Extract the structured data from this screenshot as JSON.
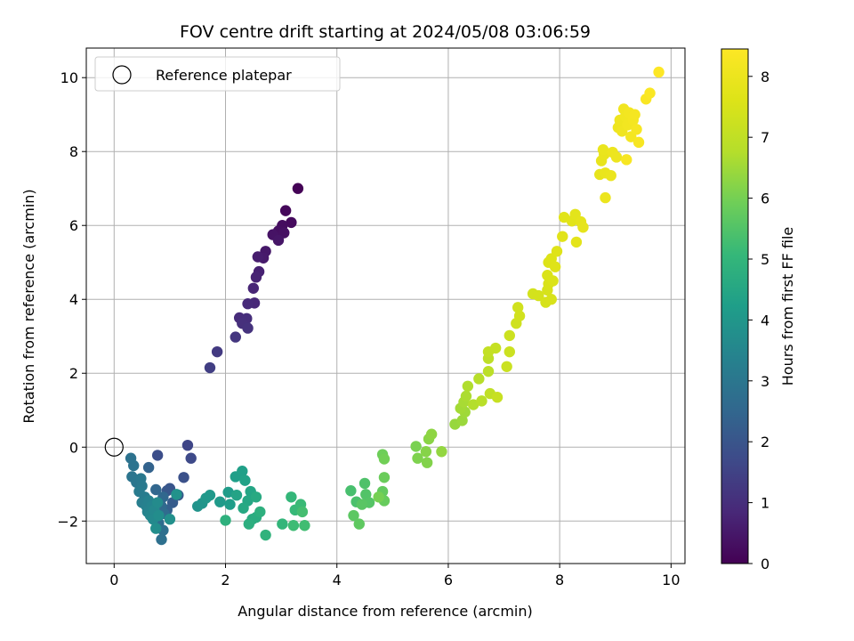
{
  "chart_data": {
    "type": "scatter",
    "title": "FOV centre drift starting at 2024/05/08 03:06:59",
    "xlabel": "Angular distance from reference (arcmin)",
    "ylabel": "Rotation from reference (arcmin)",
    "xlim": [
      -0.5,
      10.25
    ],
    "ylim": [
      -3.15,
      10.8
    ],
    "xticks": [
      0,
      2,
      4,
      6,
      8,
      10
    ],
    "yticks": [
      -2,
      0,
      2,
      4,
      6,
      8,
      10
    ],
    "grid": true,
    "legend": {
      "position": "top-left",
      "label": "Reference platepar"
    },
    "reference_point": {
      "x": 0,
      "y": 0
    },
    "colorbar": {
      "label": "Hours from first FF file",
      "range": [
        0,
        8.45
      ],
      "ticks": [
        0,
        1,
        2,
        3,
        4,
        5,
        6,
        7,
        8
      ],
      "colormap": "viridis"
    },
    "points": [
      {
        "x": 3.3,
        "y": 7.0,
        "h": 0.05
      },
      {
        "x": 3.08,
        "y": 6.4,
        "h": 0.15
      },
      {
        "x": 3.18,
        "y": 6.08,
        "h": 0.2
      },
      {
        "x": 3.02,
        "y": 6.0,
        "h": 0.25
      },
      {
        "x": 2.95,
        "y": 5.85,
        "h": 0.3
      },
      {
        "x": 3.05,
        "y": 5.8,
        "h": 0.35
      },
      {
        "x": 2.85,
        "y": 5.75,
        "h": 0.4
      },
      {
        "x": 2.95,
        "y": 5.6,
        "h": 0.45
      },
      {
        "x": 2.72,
        "y": 5.3,
        "h": 0.5
      },
      {
        "x": 2.68,
        "y": 5.12,
        "h": 0.55
      },
      {
        "x": 2.58,
        "y": 5.15,
        "h": 0.6
      },
      {
        "x": 2.6,
        "y": 4.75,
        "h": 0.7
      },
      {
        "x": 2.55,
        "y": 4.6,
        "h": 0.75
      },
      {
        "x": 2.5,
        "y": 4.3,
        "h": 0.8
      },
      {
        "x": 2.52,
        "y": 3.9,
        "h": 0.85
      },
      {
        "x": 2.4,
        "y": 3.88,
        "h": 0.9
      },
      {
        "x": 2.25,
        "y": 3.5,
        "h": 0.95
      },
      {
        "x": 2.38,
        "y": 3.48,
        "h": 1.0
      },
      {
        "x": 2.3,
        "y": 3.35,
        "h": 1.05
      },
      {
        "x": 2.4,
        "y": 3.22,
        "h": 1.1
      },
      {
        "x": 2.18,
        "y": 2.98,
        "h": 1.2
      },
      {
        "x": 1.85,
        "y": 2.58,
        "h": 1.3
      },
      {
        "x": 1.72,
        "y": 2.15,
        "h": 1.4
      },
      {
        "x": 1.32,
        "y": 0.05,
        "h": 1.6
      },
      {
        "x": 1.38,
        "y": -0.3,
        "h": 1.7
      },
      {
        "x": 0.78,
        "y": -0.22,
        "h": 1.8
      },
      {
        "x": 1.25,
        "y": -0.82,
        "h": 1.9
      },
      {
        "x": 1.0,
        "y": -1.12,
        "h": 2.0
      },
      {
        "x": 0.95,
        "y": -1.18,
        "h": 2.05
      },
      {
        "x": 1.15,
        "y": -1.3,
        "h": 2.1
      },
      {
        "x": 1.05,
        "y": -1.5,
        "h": 2.2
      },
      {
        "x": 0.95,
        "y": -1.7,
        "h": 2.3
      },
      {
        "x": 0.62,
        "y": -0.55,
        "h": 2.4
      },
      {
        "x": 0.75,
        "y": -1.15,
        "h": 2.5
      },
      {
        "x": 0.88,
        "y": -1.35,
        "h": 2.55
      },
      {
        "x": 0.85,
        "y": -1.6,
        "h": 2.6
      },
      {
        "x": 0.9,
        "y": -1.8,
        "h": 2.65
      },
      {
        "x": 0.8,
        "y": -2.05,
        "h": 2.7
      },
      {
        "x": 0.88,
        "y": -2.25,
        "h": 2.75
      },
      {
        "x": 0.85,
        "y": -2.5,
        "h": 2.8
      },
      {
        "x": 0.3,
        "y": -0.3,
        "h": 2.85
      },
      {
        "x": 0.35,
        "y": -0.5,
        "h": 2.9
      },
      {
        "x": 0.32,
        "y": -0.8,
        "h": 2.95
      },
      {
        "x": 0.4,
        "y": -0.95,
        "h": 3.0
      },
      {
        "x": 0.48,
        "y": -0.85,
        "h": 3.05
      },
      {
        "x": 0.5,
        "y": -1.05,
        "h": 3.1
      },
      {
        "x": 0.45,
        "y": -1.2,
        "h": 3.15
      },
      {
        "x": 0.55,
        "y": -1.35,
        "h": 3.2
      },
      {
        "x": 0.5,
        "y": -1.5,
        "h": 3.25
      },
      {
        "x": 0.58,
        "y": -1.6,
        "h": 3.3
      },
      {
        "x": 0.62,
        "y": -1.45,
        "h": 3.35
      },
      {
        "x": 0.6,
        "y": -1.75,
        "h": 3.4
      },
      {
        "x": 0.68,
        "y": -1.6,
        "h": 3.45
      },
      {
        "x": 0.65,
        "y": -1.85,
        "h": 3.5
      },
      {
        "x": 0.72,
        "y": -1.7,
        "h": 3.55
      },
      {
        "x": 0.7,
        "y": -1.95,
        "h": 3.6
      },
      {
        "x": 0.78,
        "y": -1.5,
        "h": 3.65
      },
      {
        "x": 0.8,
        "y": -1.85,
        "h": 3.7
      },
      {
        "x": 0.75,
        "y": -2.2,
        "h": 3.75
      },
      {
        "x": 1.0,
        "y": -1.95,
        "h": 3.8
      },
      {
        "x": 1.12,
        "y": -1.28,
        "h": 3.85
      },
      {
        "x": 1.5,
        "y": -1.6,
        "h": 3.9
      },
      {
        "x": 1.58,
        "y": -1.52,
        "h": 3.95
      },
      {
        "x": 1.65,
        "y": -1.38,
        "h": 4.0
      },
      {
        "x": 1.72,
        "y": -1.3,
        "h": 4.05
      },
      {
        "x": 1.9,
        "y": -1.48,
        "h": 4.1
      },
      {
        "x": 2.05,
        "y": -1.22,
        "h": 4.15
      },
      {
        "x": 2.08,
        "y": -1.55,
        "h": 4.2
      },
      {
        "x": 2.18,
        "y": -0.8,
        "h": 4.25
      },
      {
        "x": 2.3,
        "y": -0.65,
        "h": 4.3
      },
      {
        "x": 2.35,
        "y": -0.9,
        "h": 4.35
      },
      {
        "x": 2.2,
        "y": -1.3,
        "h": 4.4
      },
      {
        "x": 2.45,
        "y": -1.2,
        "h": 4.45
      },
      {
        "x": 2.4,
        "y": -1.45,
        "h": 4.5
      },
      {
        "x": 2.32,
        "y": -1.65,
        "h": 4.55
      },
      {
        "x": 2.55,
        "y": -1.35,
        "h": 4.6
      },
      {
        "x": 2.48,
        "y": -1.95,
        "h": 4.65
      },
      {
        "x": 2.55,
        "y": -1.9,
        "h": 4.7
      },
      {
        "x": 2.42,
        "y": -2.08,
        "h": 4.75
      },
      {
        "x": 2.62,
        "y": -1.75,
        "h": 4.8
      },
      {
        "x": 2.0,
        "y": -1.98,
        "h": 4.85
      },
      {
        "x": 2.72,
        "y": -2.38,
        "h": 4.9
      },
      {
        "x": 3.02,
        "y": -2.08,
        "h": 5.0
      },
      {
        "x": 3.18,
        "y": -1.35,
        "h": 5.05
      },
      {
        "x": 3.25,
        "y": -1.7,
        "h": 5.1
      },
      {
        "x": 3.35,
        "y": -1.55,
        "h": 5.15
      },
      {
        "x": 3.22,
        "y": -2.12,
        "h": 5.2
      },
      {
        "x": 3.42,
        "y": -2.12,
        "h": 5.25
      },
      {
        "x": 3.38,
        "y": -1.75,
        "h": 5.3
      },
      {
        "x": 4.25,
        "y": -1.18,
        "h": 5.35
      },
      {
        "x": 4.35,
        "y": -1.48,
        "h": 5.4
      },
      {
        "x": 4.5,
        "y": -0.98,
        "h": 5.45
      },
      {
        "x": 4.52,
        "y": -1.28,
        "h": 5.5
      },
      {
        "x": 4.58,
        "y": -1.5,
        "h": 5.55
      },
      {
        "x": 4.45,
        "y": -1.55,
        "h": 5.6
      },
      {
        "x": 4.3,
        "y": -1.85,
        "h": 5.65
      },
      {
        "x": 4.4,
        "y": -2.08,
        "h": 5.7
      },
      {
        "x": 4.82,
        "y": -1.2,
        "h": 5.75
      },
      {
        "x": 4.85,
        "y": -1.45,
        "h": 5.8
      },
      {
        "x": 4.85,
        "y": -0.82,
        "h": 5.85
      },
      {
        "x": 4.82,
        "y": -0.2,
        "h": 5.9
      },
      {
        "x": 4.85,
        "y": -0.32,
        "h": 5.95
      },
      {
        "x": 4.75,
        "y": -1.35,
        "h": 6.0
      },
      {
        "x": 5.42,
        "y": 0.02,
        "h": 6.05
      },
      {
        "x": 5.45,
        "y": -0.3,
        "h": 6.1
      },
      {
        "x": 5.62,
        "y": -0.42,
        "h": 6.15
      },
      {
        "x": 5.6,
        "y": -0.12,
        "h": 6.2
      },
      {
        "x": 5.65,
        "y": 0.22,
        "h": 6.25
      },
      {
        "x": 5.7,
        "y": 0.35,
        "h": 6.3
      },
      {
        "x": 5.88,
        "y": -0.12,
        "h": 6.35
      },
      {
        "x": 6.12,
        "y": 0.62,
        "h": 6.4
      },
      {
        "x": 6.25,
        "y": 0.72,
        "h": 6.45
      },
      {
        "x": 6.3,
        "y": 0.95,
        "h": 6.5
      },
      {
        "x": 6.22,
        "y": 1.05,
        "h": 6.55
      },
      {
        "x": 6.28,
        "y": 1.22,
        "h": 6.6
      },
      {
        "x": 6.32,
        "y": 1.38,
        "h": 6.65
      },
      {
        "x": 6.35,
        "y": 1.65,
        "h": 6.7
      },
      {
        "x": 6.45,
        "y": 1.15,
        "h": 6.75
      },
      {
        "x": 6.55,
        "y": 1.85,
        "h": 6.8
      },
      {
        "x": 6.6,
        "y": 1.25,
        "h": 6.85
      },
      {
        "x": 6.72,
        "y": 2.05,
        "h": 6.9
      },
      {
        "x": 6.72,
        "y": 2.4,
        "h": 6.95
      },
      {
        "x": 6.75,
        "y": 1.45,
        "h": 7.0
      },
      {
        "x": 6.72,
        "y": 2.58,
        "h": 7.05
      },
      {
        "x": 6.85,
        "y": 2.68,
        "h": 7.1
      },
      {
        "x": 6.88,
        "y": 1.35,
        "h": 7.15
      },
      {
        "x": 7.05,
        "y": 2.18,
        "h": 7.2
      },
      {
        "x": 7.1,
        "y": 2.58,
        "h": 7.22
      },
      {
        "x": 7.1,
        "y": 3.02,
        "h": 7.25
      },
      {
        "x": 7.22,
        "y": 3.35,
        "h": 7.3
      },
      {
        "x": 7.25,
        "y": 3.78,
        "h": 7.32
      },
      {
        "x": 7.28,
        "y": 3.55,
        "h": 7.35
      },
      {
        "x": 7.52,
        "y": 4.15,
        "h": 7.4
      },
      {
        "x": 7.62,
        "y": 4.1,
        "h": 7.42
      },
      {
        "x": 7.75,
        "y": 3.92,
        "h": 7.45
      },
      {
        "x": 7.78,
        "y": 4.25,
        "h": 7.47
      },
      {
        "x": 7.85,
        "y": 4.0,
        "h": 7.5
      },
      {
        "x": 7.8,
        "y": 4.42,
        "h": 7.52
      },
      {
        "x": 7.78,
        "y": 4.65,
        "h": 7.55
      },
      {
        "x": 7.88,
        "y": 4.5,
        "h": 7.57
      },
      {
        "x": 7.8,
        "y": 5.0,
        "h": 7.6
      },
      {
        "x": 7.85,
        "y": 5.1,
        "h": 7.62
      },
      {
        "x": 7.92,
        "y": 4.88,
        "h": 7.65
      },
      {
        "x": 7.95,
        "y": 5.3,
        "h": 7.67
      },
      {
        "x": 8.05,
        "y": 5.7,
        "h": 7.7
      },
      {
        "x": 8.08,
        "y": 6.22,
        "h": 7.72
      },
      {
        "x": 8.22,
        "y": 6.12,
        "h": 7.75
      },
      {
        "x": 8.28,
        "y": 6.3,
        "h": 7.77
      },
      {
        "x": 8.3,
        "y": 5.55,
        "h": 7.8
      },
      {
        "x": 8.38,
        "y": 6.1,
        "h": 7.82
      },
      {
        "x": 8.42,
        "y": 5.95,
        "h": 7.85
      },
      {
        "x": 8.72,
        "y": 7.38,
        "h": 7.87
      },
      {
        "x": 8.75,
        "y": 7.75,
        "h": 7.9
      },
      {
        "x": 8.8,
        "y": 7.92,
        "h": 7.92
      },
      {
        "x": 8.78,
        "y": 8.05,
        "h": 7.94
      },
      {
        "x": 8.82,
        "y": 7.42,
        "h": 7.96
      },
      {
        "x": 8.92,
        "y": 7.35,
        "h": 7.98
      },
      {
        "x": 8.82,
        "y": 6.75,
        "h": 8.0
      },
      {
        "x": 8.95,
        "y": 7.98,
        "h": 8.02
      },
      {
        "x": 9.02,
        "y": 7.85,
        "h": 8.04
      },
      {
        "x": 9.05,
        "y": 8.65,
        "h": 8.06
      },
      {
        "x": 9.08,
        "y": 8.85,
        "h": 8.08
      },
      {
        "x": 9.12,
        "y": 8.55,
        "h": 8.1
      },
      {
        "x": 9.15,
        "y": 9.15,
        "h": 8.12
      },
      {
        "x": 9.18,
        "y": 8.95,
        "h": 8.14
      },
      {
        "x": 9.22,
        "y": 8.72,
        "h": 8.16
      },
      {
        "x": 9.25,
        "y": 9.05,
        "h": 8.18
      },
      {
        "x": 9.28,
        "y": 8.4,
        "h": 8.2
      },
      {
        "x": 9.32,
        "y": 8.85,
        "h": 8.22
      },
      {
        "x": 9.35,
        "y": 9.0,
        "h": 8.24
      },
      {
        "x": 9.38,
        "y": 8.6,
        "h": 8.26
      },
      {
        "x": 9.42,
        "y": 8.25,
        "h": 8.28
      },
      {
        "x": 9.2,
        "y": 7.78,
        "h": 8.3
      },
      {
        "x": 9.55,
        "y": 9.42,
        "h": 8.34
      },
      {
        "x": 9.62,
        "y": 9.58,
        "h": 8.38
      },
      {
        "x": 9.78,
        "y": 10.15,
        "h": 8.45
      }
    ]
  }
}
